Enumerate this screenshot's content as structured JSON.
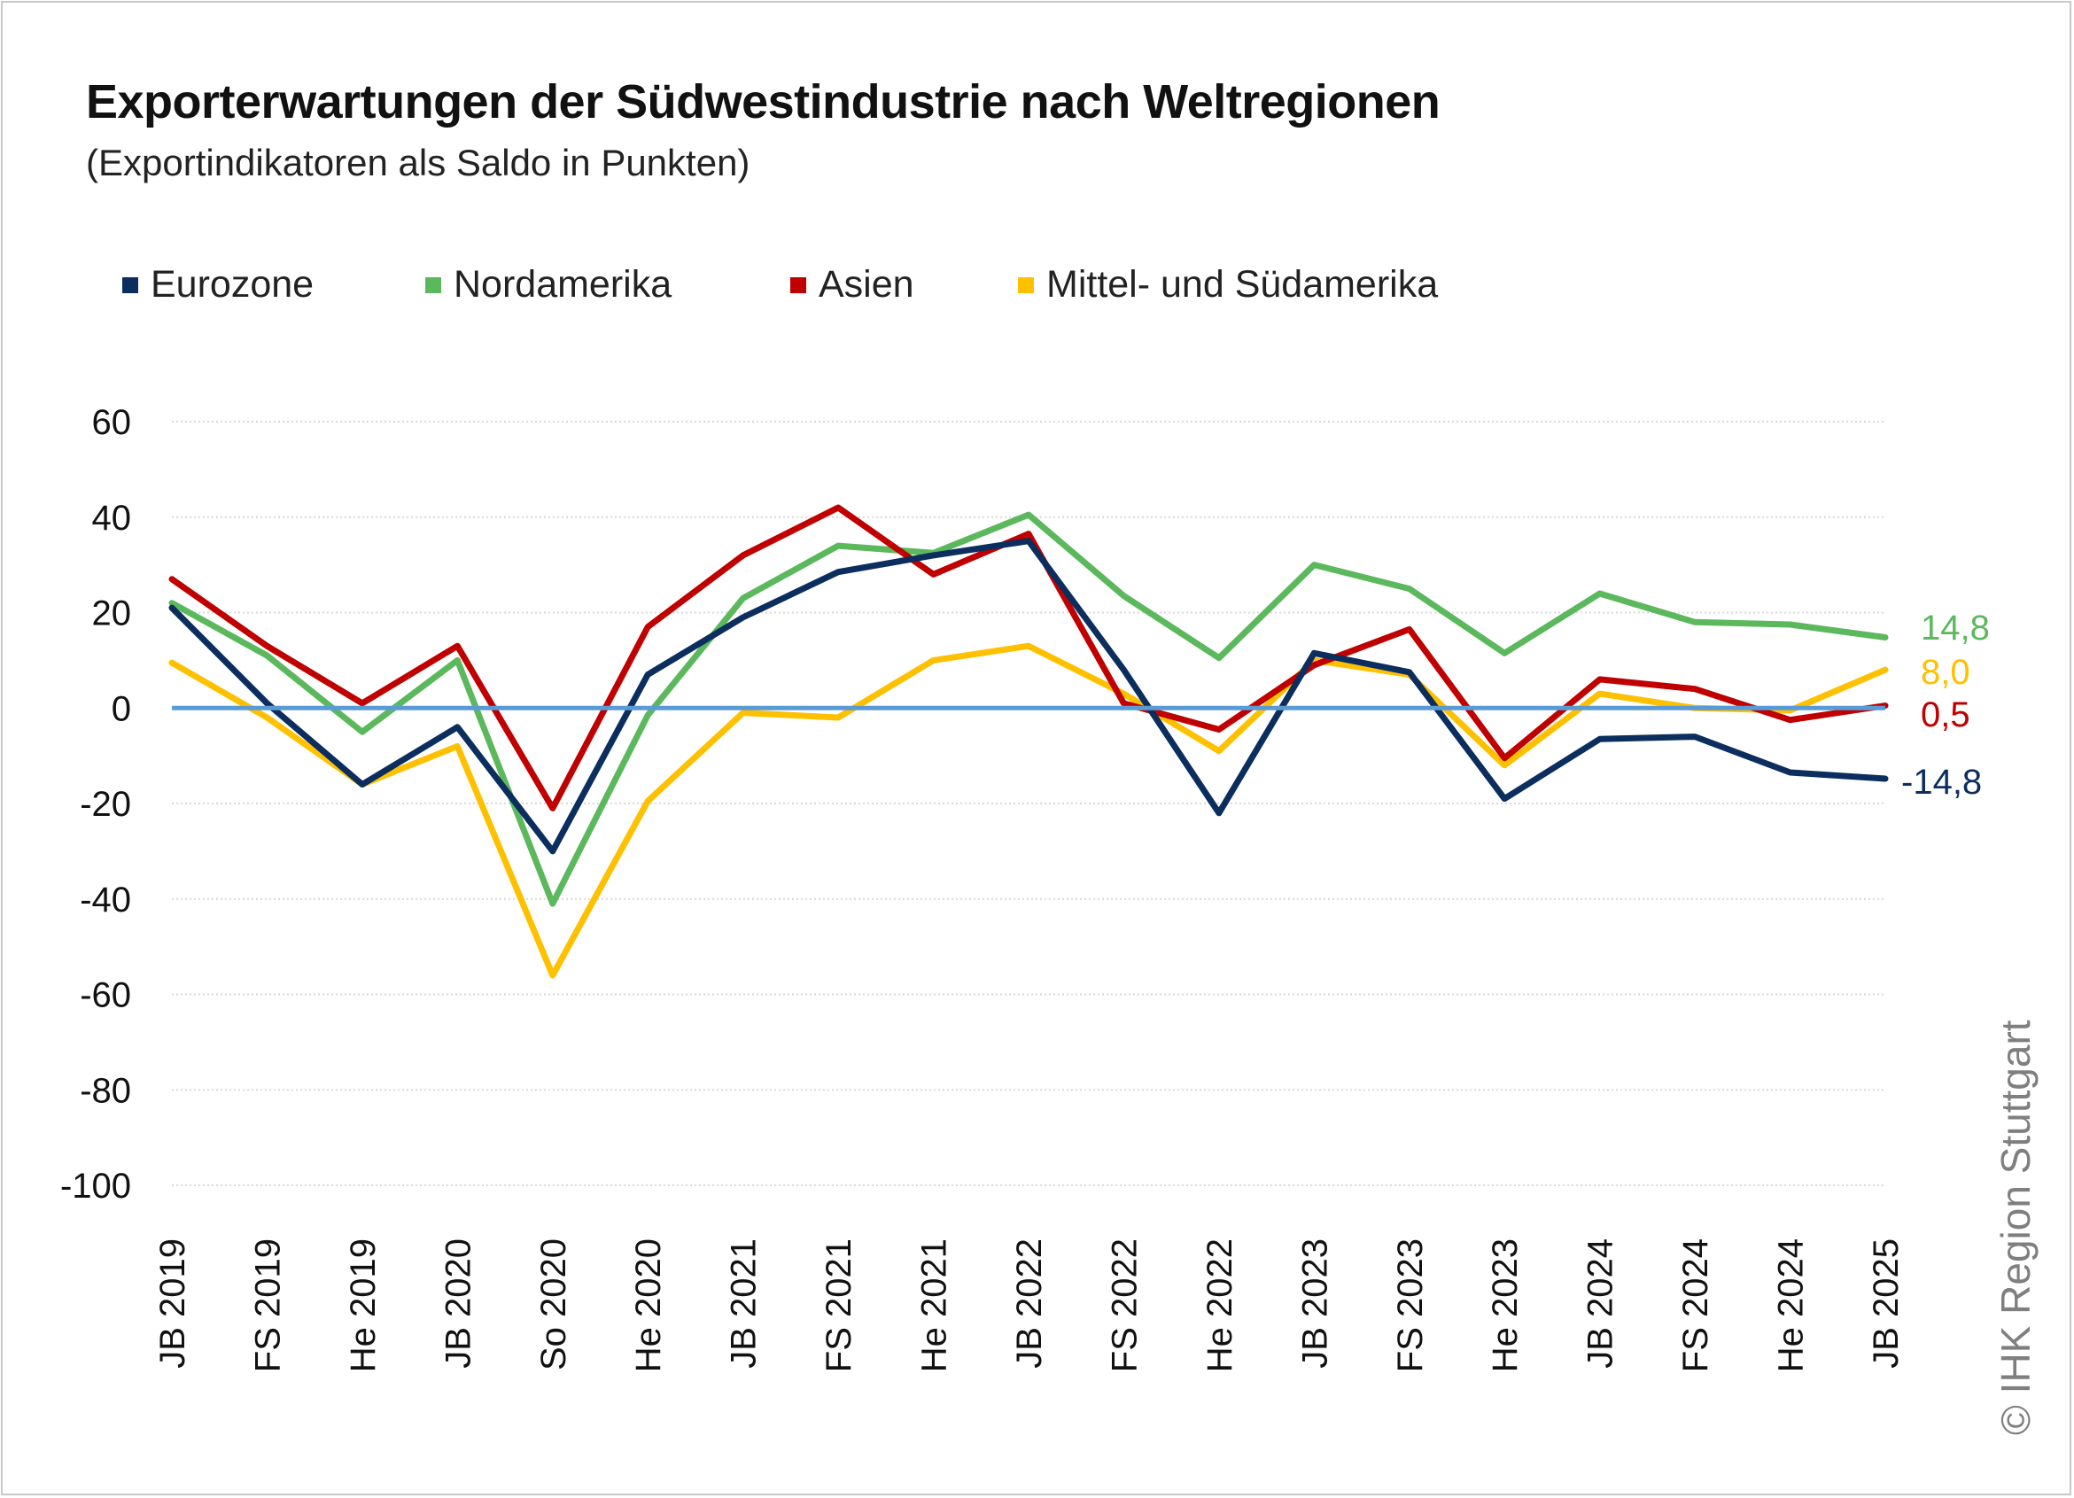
{
  "title": "Exporterwartungen der Südwestindustrie nach Weltregionen",
  "subtitle": "(Exportindikatoren als Saldo in Punkten)",
  "copyright": "© IHK Region Stuttgart",
  "chart_data": {
    "type": "line",
    "title": "Exporterwartungen der Südwestindustrie nach Weltregionen",
    "subtitle": "(Exportindikatoren als Saldo in Punkten)",
    "ylim": [
      -100,
      60
    ],
    "yticks": [
      "60",
      "40",
      "20",
      "0",
      "-20",
      "-40",
      "-60",
      "-80",
      "-100"
    ],
    "ytick_values": [
      60,
      40,
      20,
      0,
      -20,
      -40,
      -60,
      -80,
      -100
    ],
    "grid": true,
    "legend_position": "top-left",
    "zero_line_color": "#5b9bd5",
    "categories": [
      "JB 2019",
      "FS 2019",
      "He 2019",
      "JB 2020",
      "So 2020",
      "He 2020",
      "JB 2021",
      "FS 2021",
      "He 2021",
      "JB 2022",
      "FS 2022",
      "He 2022",
      "JB 2023",
      "FS 2023",
      "He 2023",
      "JB 2024",
      "FS 2024",
      "He 2024",
      "JB 2025"
    ],
    "series": [
      {
        "name": "Mittel- und Südamerika",
        "color": "#ffc000",
        "values": [
          9.5,
          -2,
          -16,
          -8,
          -56,
          -19.5,
          -1,
          -2,
          10,
          13,
          3,
          -9,
          10,
          7,
          -12,
          3,
          0,
          -0.5,
          8.0
        ],
        "end_label": "8,0"
      },
      {
        "name": "Nordamerika",
        "color": "#5cb85c",
        "values": [
          22,
          11,
          -5,
          10,
          -41,
          -1.5,
          23,
          34,
          32.5,
          40.5,
          23.5,
          10.5,
          30,
          25,
          11.5,
          24,
          18,
          17.5,
          14.8
        ],
        "end_label": "14,8"
      },
      {
        "name": "Asien",
        "color": "#c00000",
        "values": [
          27,
          13,
          1,
          13,
          -21,
          17,
          32,
          42,
          28,
          36.5,
          1,
          -4.5,
          9,
          16.5,
          -10.5,
          6,
          4,
          -2.5,
          0.5
        ],
        "end_label": "0,5"
      },
      {
        "name": "Eurozone",
        "color": "#0b2e5e",
        "values": [
          21,
          1,
          -16,
          -4,
          -30,
          7,
          19,
          28.5,
          32,
          35,
          8,
          -22,
          11.5,
          7.5,
          -19,
          -6.5,
          -6,
          -13.5,
          -14.8
        ],
        "end_label": "-14,8"
      }
    ],
    "legend": [
      {
        "name": "Eurozone",
        "color": "#0b2e5e"
      },
      {
        "name": "Nordamerika",
        "color": "#5cb85c"
      },
      {
        "name": "Asien",
        "color": "#c00000"
      },
      {
        "name": "Mittel- und Südamerika",
        "color": "#ffc000"
      }
    ]
  }
}
